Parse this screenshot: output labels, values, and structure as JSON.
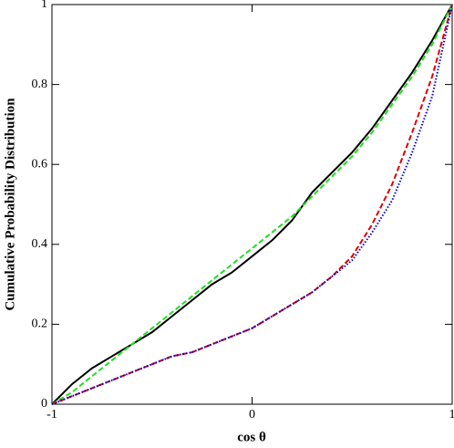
{
  "chart_data": {
    "type": "line",
    "x_label": "cos θ",
    "y_label": "Cumulative Probability Distribution",
    "x": [
      -1,
      -0.9,
      -0.8,
      -0.7,
      -0.6,
      -0.5,
      -0.4,
      -0.3,
      -0.2,
      -0.1,
      0,
      0.1,
      0.2,
      0.3,
      0.4,
      0.5,
      0.6,
      0.7,
      0.8,
      0.9,
      1
    ],
    "series": [
      {
        "color": "#000000",
        "dash": "solid",
        "values": [
          0,
          0.05,
          0.09,
          0.12,
          0.15,
          0.18,
          0.22,
          0.26,
          0.3,
          0.33,
          0.37,
          0.41,
          0.46,
          0.53,
          0.58,
          0.63,
          0.69,
          0.76,
          0.83,
          0.91,
          1
        ]
      },
      {
        "color": "#22dd22",
        "dash": "dashed",
        "values": [
          0,
          0.03,
          0.07,
          0.11,
          0.15,
          0.19,
          0.23,
          0.27,
          0.31,
          0.35,
          0.39,
          0.43,
          0.47,
          0.52,
          0.57,
          0.62,
          0.68,
          0.75,
          0.82,
          0.9,
          1
        ]
      },
      {
        "color": "#dd0000",
        "dash": "dashed",
        "values": [
          0,
          0.02,
          0.04,
          0.06,
          0.08,
          0.1,
          0.12,
          0.13,
          0.15,
          0.17,
          0.19,
          0.22,
          0.25,
          0.28,
          0.32,
          0.37,
          0.45,
          0.55,
          0.68,
          0.82,
          1
        ]
      },
      {
        "color": "#0000dd",
        "dash": "dotted",
        "values": [
          0,
          0.02,
          0.04,
          0.06,
          0.08,
          0.1,
          0.12,
          0.13,
          0.15,
          0.17,
          0.19,
          0.22,
          0.25,
          0.28,
          0.32,
          0.36,
          0.43,
          0.51,
          0.63,
          0.77,
          1
        ]
      }
    ],
    "xlim": [
      -1,
      1
    ],
    "xticks": [
      -1,
      0,
      1
    ],
    "ylim": [
      0,
      1
    ],
    "yticks": [
      0,
      0.2,
      0.4,
      0.6,
      0.8,
      1
    ]
  }
}
